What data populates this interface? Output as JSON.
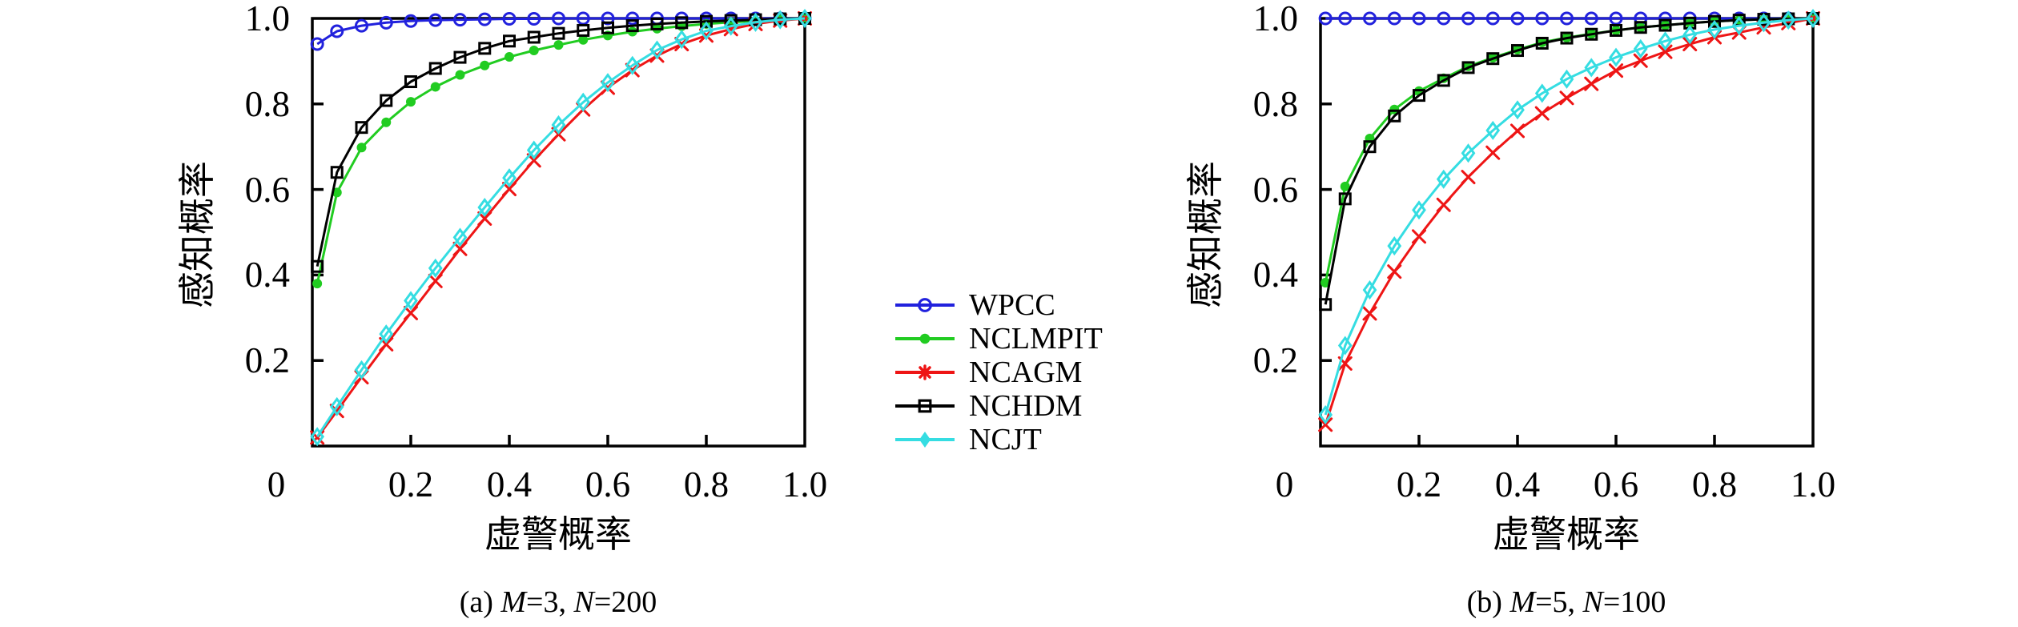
{
  "page": {
    "background": "#ffffff",
    "axis_color": "#000000"
  },
  "legend": {
    "items": [
      {
        "label": "WPCC",
        "color": "#2121dd",
        "marker": "circle-open"
      },
      {
        "label": "NCLMPIT",
        "color": "#21cc21",
        "marker": "circle-filled"
      },
      {
        "label": "NCAGM",
        "color": "#ee1515",
        "marker": "x-cross"
      },
      {
        "label": "NCHDM",
        "color": "#000000",
        "marker": "square-open"
      },
      {
        "label": "NCJT",
        "color": "#35dde2",
        "marker": "diamond"
      }
    ]
  },
  "plots": [
    {
      "id": "a",
      "xlabel": "虚警概率",
      "ylabel": "感知概率",
      "x_tick_labels": [
        "0",
        "0.2",
        "0.4",
        "0.6",
        "0.8",
        "1.0"
      ],
      "y_tick_labels": [
        "1.0",
        "0.8",
        "0.6",
        "0.4",
        "0.2"
      ],
      "caption": {
        "prefix": "(a) ",
        "segments": [
          {
            "text": "M",
            "italic": true
          },
          {
            "text": "=3, "
          },
          {
            "text": "N",
            "italic": true
          },
          {
            "text": "=200"
          }
        ]
      }
    },
    {
      "id": "b",
      "xlabel": "虚警概率",
      "ylabel": "感知概率",
      "x_tick_labels": [
        "0",
        "0.2",
        "0.4",
        "0.6",
        "0.8",
        "1.0"
      ],
      "y_tick_labels": [
        "1.0",
        "0.8",
        "0.6",
        "0.4",
        "0.2"
      ],
      "caption": {
        "prefix": "(b) ",
        "segments": [
          {
            "text": "M",
            "italic": true
          },
          {
            "text": "=5, "
          },
          {
            "text": "N",
            "italic": true
          },
          {
            "text": "=100"
          }
        ]
      }
    }
  ],
  "chart_data": [
    {
      "type": "line",
      "title": "(a) M=3, N=200",
      "xlabel": "虚警概率",
      "ylabel": "感知概率",
      "xlim": [
        0,
        1
      ],
      "ylim": [
        0,
        1
      ],
      "x_ticks": [
        0,
        0.2,
        0.4,
        0.6,
        0.8,
        1.0
      ],
      "y_ticks": [
        0.2,
        0.4,
        0.6,
        0.8,
        1.0
      ],
      "grid": false,
      "legend_position": "right-of-plot",
      "x": [
        0.01,
        0.05,
        0.1,
        0.15,
        0.2,
        0.25,
        0.3,
        0.35,
        0.4,
        0.45,
        0.5,
        0.55,
        0.6,
        0.65,
        0.7,
        0.75,
        0.8,
        0.85,
        0.9,
        0.95,
        1.0
      ],
      "series": [
        {
          "name": "WPCC",
          "color": "#2121dd",
          "marker": "circle-open",
          "values": [
            0.94,
            0.97,
            0.983,
            0.99,
            0.994,
            0.996,
            0.997,
            0.998,
            0.999,
            0.999,
            1.0,
            1.0,
            1.0,
            1.0,
            1.0,
            1.0,
            1.0,
            1.0,
            1.0,
            1.0,
            1.0
          ]
        },
        {
          "name": "NCLMPIT",
          "color": "#21cc21",
          "marker": "circle-filled",
          "values": [
            0.38,
            0.593,
            0.698,
            0.757,
            0.805,
            0.84,
            0.868,
            0.89,
            0.91,
            0.925,
            0.938,
            0.95,
            0.96,
            0.969,
            0.976,
            0.982,
            0.987,
            0.991,
            0.994,
            0.997,
            1.0
          ]
        },
        {
          "name": "NCAGM",
          "color": "#ee1515",
          "marker": "x-cross",
          "values": [
            0.02,
            0.082,
            0.161,
            0.238,
            0.311,
            0.386,
            0.461,
            0.532,
            0.601,
            0.668,
            0.729,
            0.787,
            0.838,
            0.879,
            0.913,
            0.94,
            0.96,
            0.975,
            0.987,
            0.995,
            1.0
          ]
        },
        {
          "name": "NCHDM",
          "color": "#000000",
          "marker": "square-open",
          "values": [
            0.42,
            0.64,
            0.745,
            0.808,
            0.852,
            0.883,
            0.909,
            0.93,
            0.947,
            0.956,
            0.965,
            0.972,
            0.978,
            0.983,
            0.987,
            0.99,
            0.993,
            0.995,
            0.997,
            0.999,
            1.0
          ]
        },
        {
          "name": "NCJT",
          "color": "#35dde2",
          "marker": "diamond",
          "values": [
            0.022,
            0.092,
            0.178,
            0.262,
            0.34,
            0.416,
            0.488,
            0.558,
            0.627,
            0.692,
            0.751,
            0.804,
            0.85,
            0.89,
            0.926,
            0.951,
            0.971,
            0.982,
            0.991,
            0.997,
            1.0
          ]
        }
      ]
    },
    {
      "type": "line",
      "title": "(b) M=5, N=100",
      "xlabel": "虚警概率",
      "ylabel": "感知概率",
      "xlim": [
        0,
        1
      ],
      "ylim": [
        0,
        1
      ],
      "x_ticks": [
        0,
        0.2,
        0.4,
        0.6,
        0.8,
        1.0
      ],
      "y_ticks": [
        0.2,
        0.4,
        0.6,
        0.8,
        1.0
      ],
      "grid": false,
      "legend_position": "left-of-plot",
      "x": [
        0.01,
        0.05,
        0.1,
        0.15,
        0.2,
        0.25,
        0.3,
        0.35,
        0.4,
        0.45,
        0.5,
        0.55,
        0.6,
        0.65,
        0.7,
        0.75,
        0.8,
        0.85,
        0.9,
        0.95,
        1.0
      ],
      "series": [
        {
          "name": "WPCC",
          "color": "#2121dd",
          "marker": "circle-open",
          "values": [
            1.0,
            1.0,
            1.0,
            1.0,
            1.0,
            1.0,
            1.0,
            1.0,
            1.0,
            1.0,
            1.0,
            1.0,
            1.0,
            1.0,
            1.0,
            1.0,
            1.0,
            1.0,
            1.0,
            1.0,
            1.0
          ]
        },
        {
          "name": "NCLMPIT",
          "color": "#21cc21",
          "marker": "circle-filled",
          "values": [
            0.382,
            0.607,
            0.719,
            0.787,
            0.83,
            0.86,
            0.888,
            0.908,
            0.927,
            0.944,
            0.955,
            0.964,
            0.972,
            0.979,
            0.984,
            0.989,
            0.993,
            0.996,
            0.998,
            0.999,
            1.0
          ]
        },
        {
          "name": "NCAGM",
          "color": "#ee1515",
          "marker": "x-cross",
          "values": [
            0.05,
            0.193,
            0.31,
            0.408,
            0.49,
            0.564,
            0.629,
            0.686,
            0.737,
            0.778,
            0.814,
            0.847,
            0.878,
            0.901,
            0.922,
            0.94,
            0.956,
            0.967,
            0.979,
            0.989,
            1.0
          ]
        },
        {
          "name": "NCHDM",
          "color": "#000000",
          "marker": "square-open",
          "values": [
            0.331,
            0.578,
            0.7,
            0.772,
            0.82,
            0.855,
            0.885,
            0.906,
            0.925,
            0.942,
            0.954,
            0.963,
            0.972,
            0.979,
            0.984,
            0.989,
            0.993,
            0.996,
            0.998,
            0.999,
            1.0
          ]
        },
        {
          "name": "NCJT",
          "color": "#35dde2",
          "marker": "diamond",
          "values": [
            0.073,
            0.235,
            0.365,
            0.468,
            0.552,
            0.624,
            0.685,
            0.738,
            0.786,
            0.825,
            0.858,
            0.885,
            0.909,
            0.929,
            0.947,
            0.962,
            0.974,
            0.983,
            0.99,
            0.996,
            1.0
          ]
        }
      ]
    }
  ],
  "geometry_note": "two ROC-style line charts side by side, shared central legend"
}
